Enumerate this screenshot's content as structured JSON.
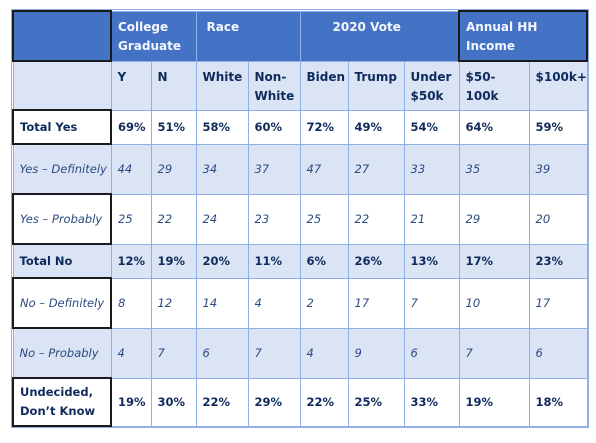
{
  "group_headers": {
    "college": "College Graduate",
    "race": "Race",
    "vote": "2020 Vote",
    "income": "Annual HH Income"
  },
  "columns": [
    "Y",
    "N",
    "White",
    "Non-White",
    "Biden",
    "Trump",
    "Under $50k",
    "$50-100k",
    "$100k+"
  ],
  "rows": [
    {
      "label": "Total Yes",
      "values": [
        "69%",
        "51%",
        "58%",
        "60%",
        "72%",
        "49%",
        "54%",
        "64%",
        "59%"
      ]
    },
    {
      "label": "Yes – Definitely",
      "values": [
        "44",
        "29",
        "34",
        "37",
        "47",
        "27",
        "33",
        "35",
        "39"
      ]
    },
    {
      "label": "Yes – Probably",
      "values": [
        "25",
        "22",
        "24",
        "23",
        "25",
        "22",
        "21",
        "29",
        "20"
      ]
    },
    {
      "label": "Total No",
      "values": [
        "12%",
        "19%",
        "20%",
        "11%",
        "6%",
        "26%",
        "13%",
        "17%",
        "23%"
      ]
    },
    {
      "label": "No – Definitely",
      "values": [
        "8",
        "12",
        "14",
        "4",
        "2",
        "17",
        "7",
        "10",
        "17"
      ]
    },
    {
      "label": "No – Probably",
      "values": [
        "4",
        "7",
        "6",
        "7",
        "4",
        "9",
        "6",
        "7",
        "6"
      ]
    },
    {
      "label": "Undecided, Don’t Know",
      "values": [
        "19%",
        "30%",
        "22%",
        "29%",
        "22%",
        "25%",
        "33%",
        "19%",
        "18%"
      ]
    }
  ]
}
